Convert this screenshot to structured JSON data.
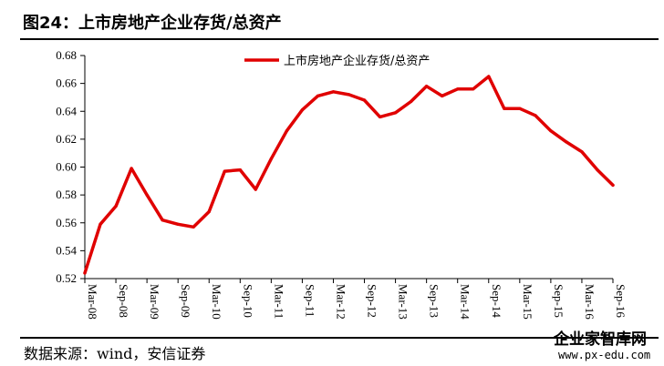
{
  "header": {
    "title": "图24：上市房地产企业存货/总资产"
  },
  "footer": {
    "source": "数据来源：wind，安信证券",
    "watermark_name": "企业家智库网",
    "watermark_url": "www.px-edu.com"
  },
  "chart_data": {
    "type": "line",
    "title": "",
    "xlabel": "",
    "ylabel": "",
    "ylim": [
      0.52,
      0.68
    ],
    "yticks": [
      "0.52",
      "0.54",
      "0.56",
      "0.58",
      "0.60",
      "0.62",
      "0.64",
      "0.66",
      "0.68"
    ],
    "xtick_labels": [
      "Mar-08",
      "Sep-08",
      "Mar-09",
      "Sep-09",
      "Mar-10",
      "Sep-10",
      "Mar-11",
      "Sep-11",
      "Mar-12",
      "Sep-12",
      "Mar-13",
      "Sep-13",
      "Mar-14",
      "Sep-14",
      "Mar-15",
      "Sep-15",
      "Mar-16",
      "Sep-16"
    ],
    "legend_position": "top-center",
    "grid": false,
    "series": [
      {
        "name": "上市房地产企业存货/总资产",
        "color": "#e00000",
        "x": [
          "Mar-08",
          "Jun-08",
          "Sep-08",
          "Dec-08",
          "Mar-09",
          "Jun-09",
          "Sep-09",
          "Dec-09",
          "Mar-10",
          "Jun-10",
          "Sep-10",
          "Dec-10",
          "Mar-11",
          "Jun-11",
          "Sep-11",
          "Dec-11",
          "Mar-12",
          "Jun-12",
          "Sep-12",
          "Dec-12",
          "Mar-13",
          "Jun-13",
          "Sep-13",
          "Dec-13",
          "Mar-14",
          "Jun-14",
          "Sep-14",
          "Dec-14",
          "Mar-15",
          "Jun-15",
          "Sep-15",
          "Dec-15",
          "Mar-16",
          "Jun-16",
          "Sep-16"
        ],
        "values": [
          0.524,
          0.559,
          0.572,
          0.599,
          0.58,
          0.562,
          0.559,
          0.557,
          0.568,
          0.597,
          0.598,
          0.584,
          0.606,
          0.626,
          0.641,
          0.651,
          0.654,
          0.652,
          0.648,
          0.636,
          0.639,
          0.647,
          0.658,
          0.651,
          0.656,
          0.656,
          0.665,
          0.642,
          0.642,
          0.637,
          0.626,
          0.618,
          0.611,
          0.598,
          0.587
        ]
      }
    ]
  }
}
